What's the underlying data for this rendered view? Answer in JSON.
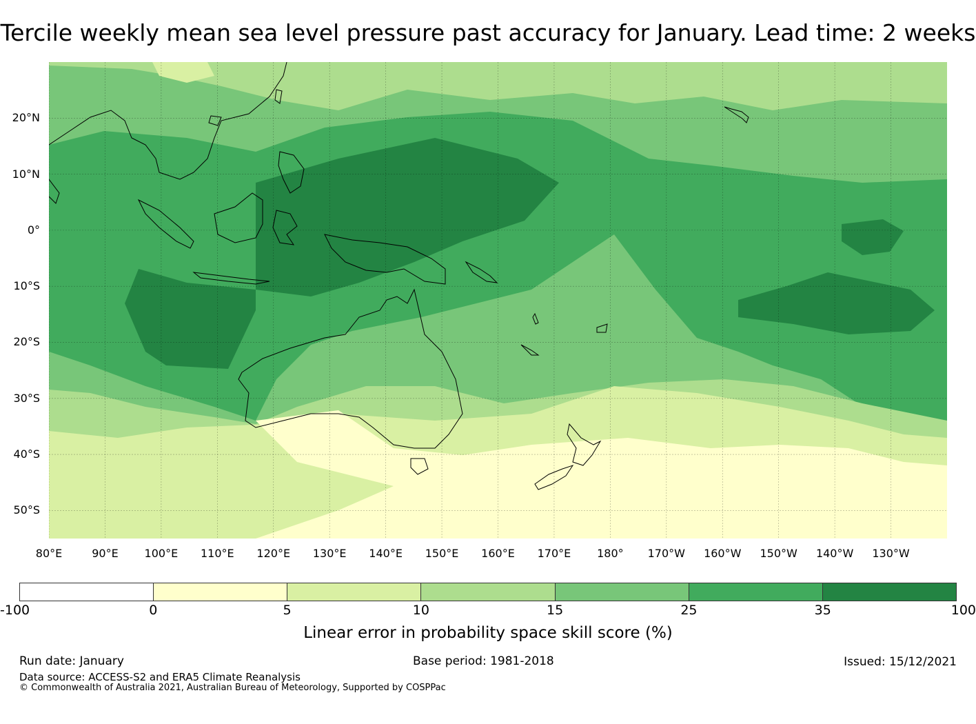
{
  "title": "Tercile weekly mean sea level pressure past accuracy for January. Lead time: 2 weeks",
  "map": {
    "projection": "equirectangular",
    "lon_range": [
      80,
      240
    ],
    "lat_range": [
      -55,
      30
    ],
    "lat_labels": [
      "20°N",
      "10°N",
      "0°",
      "10°S",
      "20°S",
      "30°S",
      "40°S",
      "50°S"
    ],
    "lat_values": [
      20,
      10,
      0,
      -10,
      -20,
      -30,
      -40,
      -50
    ],
    "lon_labels": [
      "80°E",
      "90°E",
      "100°E",
      "110°E",
      "120°E",
      "130°E",
      "140°E",
      "150°E",
      "160°E",
      "170°E",
      "180°",
      "170°W",
      "160°W",
      "150°W",
      "140°W",
      "130°W"
    ],
    "lon_values": [
      80,
      90,
      100,
      110,
      120,
      130,
      140,
      150,
      160,
      170,
      180,
      190,
      200,
      210,
      220,
      230
    ],
    "field": "LEPS skill score (%) of weekly mean sea level pressure tercile forecasts",
    "regions": [
      {
        "category": "10-15",
        "desc": "northern band"
      },
      {
        "category": "15-25",
        "desc": "tropics and subtropics"
      },
      {
        "category": "25-35",
        "desc": "equatorial band"
      },
      {
        "category": "35-100",
        "desc": "Maritime Continent and central South Pacific"
      },
      {
        "category": "5-10",
        "desc": "mid-latitudes"
      },
      {
        "category": "0-5",
        "desc": "Southern Ocean"
      }
    ]
  },
  "colorbar": {
    "ticks": [
      "-100",
      "0",
      "5",
      "10",
      "15",
      "25",
      "35",
      "100"
    ],
    "colors": [
      "#ffffff",
      "#ffffcc",
      "#d9f0a3",
      "#addd8e",
      "#78c679",
      "#41ab5d",
      "#238443"
    ],
    "label": "Linear error in probability space skill score (%)"
  },
  "footer": {
    "run_date": "Run date: January",
    "base_period": "Base period: 1981-2018",
    "issued": "Issued: 15/12/2021",
    "data_source": "Data source: ACCESS-S2 and ERA5 Climate Reanalysis",
    "copyright": "© Commonwealth of Australia 2021, Australian Bureau of Meteorology, Supported by COSPPac"
  }
}
